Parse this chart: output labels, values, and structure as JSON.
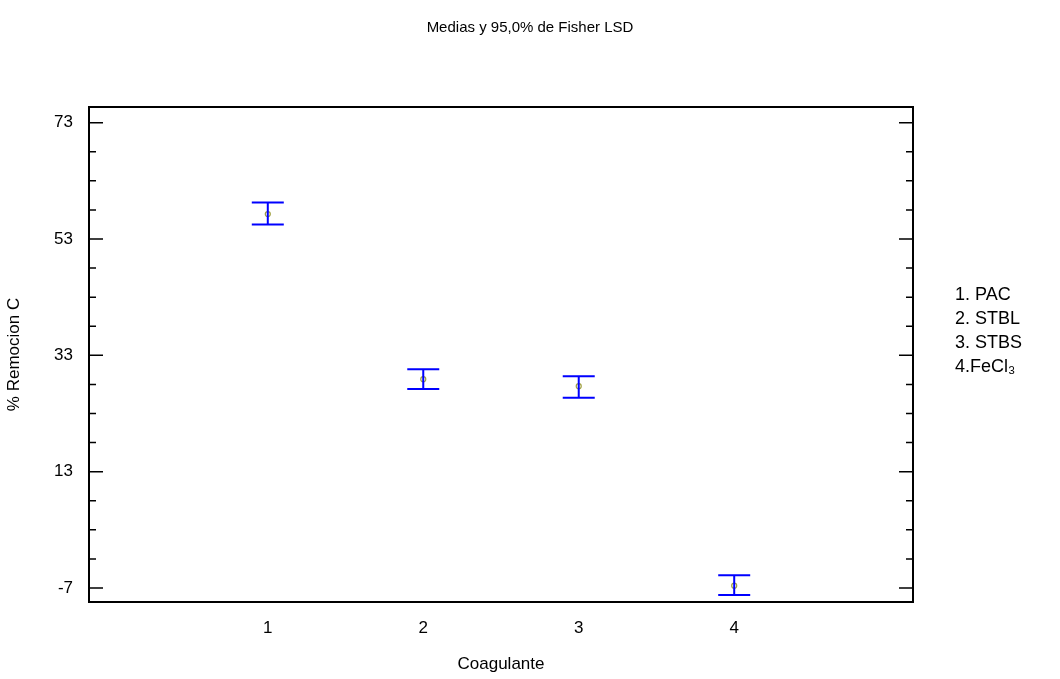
{
  "chart_data": {
    "type": "scatter",
    "title": "Medias y 95,0% de Fisher LSD",
    "xlabel": "Coagulante",
    "ylabel": "% Remocion C",
    "x": [
      1,
      2,
      3,
      4
    ],
    "series": [
      {
        "color": "#a0a040",
        "values": [
          57.3,
          28.9,
          27.7,
          -6.6
        ],
        "errors": [
          [
            55.5,
            59.3
          ],
          [
            27.2,
            30.6
          ],
          [
            25.7,
            29.4
          ],
          [
            -8.2,
            -4.8
          ]
        ]
      }
    ],
    "marker": "circle",
    "legend": false,
    "xlim": [
      -0.15,
      5.15
    ],
    "xticks": [
      1,
      2,
      3,
      4
    ],
    "ylim": [
      -9.4,
      75.7
    ],
    "yticks": [
      -7,
      {
        "value": -2,
        "label": null
      },
      {
        "value": 3,
        "label": null
      },
      {
        "value": 8,
        "label": null
      },
      13,
      {
        "value": 18,
        "label": null
      },
      {
        "value": 23,
        "label": null
      },
      {
        "value": 28,
        "label": null
      },
      33,
      {
        "value": 38,
        "label": null
      },
      {
        "value": 43,
        "label": null
      },
      {
        "value": 48,
        "label": null
      },
      53,
      {
        "value": 58,
        "label": null
      },
      {
        "value": 63,
        "label": null
      },
      {
        "value": 68,
        "label": null
      },
      73
    ],
    "annotations": [
      "1. PAC",
      "2. STBL",
      "3. STBS",
      "4.FeCl₃"
    ]
  }
}
